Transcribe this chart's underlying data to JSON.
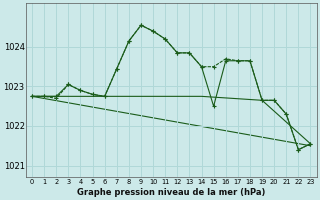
{
  "title": "Graphe pression niveau de la mer (hPa)",
  "background_color": "#cce9e9",
  "grid_color": "#b0d8d8",
  "line_color": "#1a5c1a",
  "xlim": [
    -0.5,
    23.5
  ],
  "ylim": [
    1020.7,
    1025.1
  ],
  "yticks": [
    1021,
    1022,
    1023,
    1024
  ],
  "xticks": [
    0,
    1,
    2,
    3,
    4,
    5,
    6,
    7,
    8,
    9,
    10,
    11,
    12,
    13,
    14,
    15,
    16,
    17,
    18,
    19,
    20,
    21,
    22,
    23
  ],
  "line1_x": [
    0,
    1,
    2,
    3,
    4,
    5,
    6,
    7,
    8,
    9,
    10,
    11,
    12,
    13,
    14,
    15,
    16,
    17,
    18,
    19,
    20,
    21,
    22,
    23
  ],
  "line1_y": [
    1022.75,
    1022.75,
    1022.7,
    1023.05,
    1022.9,
    1022.8,
    1022.75,
    1023.45,
    1024.15,
    1024.55,
    1024.4,
    1024.2,
    1023.85,
    1023.85,
    1023.5,
    1023.5,
    1023.7,
    1023.65,
    1023.65,
    1022.65,
    1022.65,
    1022.3,
    1021.4,
    1021.55
  ],
  "line2_x": [
    0,
    1,
    2,
    3,
    4,
    5,
    6,
    7,
    8,
    9,
    10,
    11,
    12,
    13,
    14,
    15,
    16,
    17,
    18,
    19,
    20,
    21,
    22,
    23
  ],
  "line2_y": [
    1022.75,
    1022.75,
    1022.75,
    1023.05,
    1022.9,
    1022.8,
    1022.75,
    1023.45,
    1024.15,
    1024.55,
    1024.4,
    1024.2,
    1023.85,
    1023.85,
    1023.5,
    1022.5,
    1023.65,
    1023.65,
    1023.65,
    1022.65,
    1022.65,
    1022.3,
    1021.4,
    1021.55
  ],
  "line3_x": [
    0,
    23
  ],
  "line3_y": [
    1022.75,
    1021.5
  ],
  "line4_x": [
    0,
    14,
    19,
    23
  ],
  "line4_y": [
    1022.75,
    1022.75,
    1022.65,
    1021.55
  ]
}
